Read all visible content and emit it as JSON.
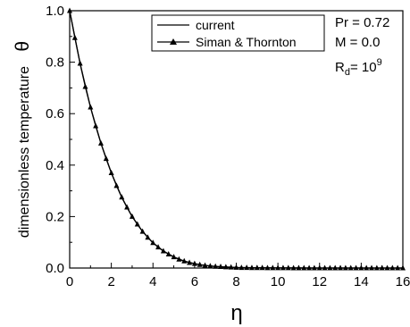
{
  "chart_data": {
    "type": "line",
    "xlabel": "η",
    "ylabel": "dimensionless temperature",
    "ylabel_symbol": "θ",
    "xlim": [
      0,
      16
    ],
    "ylim": [
      0,
      1.0
    ],
    "x_ticks": [
      "0",
      "2",
      "4",
      "6",
      "8",
      "10",
      "12",
      "14",
      "16"
    ],
    "y_ticks": [
      "0.0",
      "0.2",
      "0.4",
      "0.6",
      "0.8",
      "1.0"
    ],
    "grid": false,
    "legend_position": "top-center",
    "annotations": {
      "pr": "Pr = 0.72",
      "m": "M = 0.0",
      "rd_base": "R",
      "rd_sub": "d",
      "rd_eq": "= 10",
      "rd_sup": "9"
    },
    "series": [
      {
        "name": "current",
        "style": "solid-line",
        "color": "#000000",
        "x": [
          0,
          0.5,
          1.0,
          1.5,
          2.0,
          2.5,
          3.0,
          3.5,
          4.0,
          4.5,
          5.0,
          5.5,
          6.0,
          6.5,
          7.0,
          7.5,
          8.0,
          9.0,
          10.0,
          11.0,
          12.0,
          13.0,
          14.0,
          15.0,
          16.0
        ],
        "y": [
          1.0,
          0.795,
          0.625,
          0.485,
          0.37,
          0.275,
          0.2,
          0.142,
          0.098,
          0.066,
          0.043,
          0.027,
          0.017,
          0.01,
          0.006,
          0.004,
          0.002,
          0.001,
          0.0005,
          0.0002,
          0.0001,
          0.0,
          0.0,
          0.0,
          0.0
        ]
      },
      {
        "name": "Siman & Thornton",
        "style": "line-triangle-markers",
        "color": "#000000",
        "x": [
          0,
          0.25,
          0.5,
          0.75,
          1.0,
          1.25,
          1.5,
          1.75,
          2.0,
          2.25,
          2.5,
          2.75,
          3.0,
          3.25,
          3.5,
          3.75,
          4.0,
          4.25,
          4.5,
          4.75,
          5.0,
          5.25,
          5.5,
          5.75,
          6.0,
          6.25,
          6.5,
          6.75,
          7.0,
          7.25,
          7.5,
          7.75,
          8.0,
          8.25,
          8.5,
          8.75,
          9.0,
          9.25,
          9.5,
          9.75,
          10.0,
          10.25,
          10.5,
          10.75,
          11.0,
          11.25,
          11.5,
          11.75,
          12.0,
          12.25,
          12.5,
          12.75,
          13.0,
          13.25,
          13.5,
          13.75,
          14.0,
          14.25,
          14.5,
          14.75,
          15.0,
          15.25,
          15.5,
          15.75,
          16.0
        ],
        "y": [
          1.0,
          0.895,
          0.795,
          0.705,
          0.625,
          0.552,
          0.485,
          0.425,
          0.37,
          0.32,
          0.275,
          0.236,
          0.2,
          0.17,
          0.142,
          0.119,
          0.098,
          0.081,
          0.066,
          0.054,
          0.043,
          0.034,
          0.027,
          0.021,
          0.017,
          0.013,
          0.01,
          0.008,
          0.006,
          0.005,
          0.004,
          0.003,
          0.002,
          0.0015,
          0.0012,
          0.001,
          0.001,
          0.0008,
          0.0006,
          0.0005,
          0.0005,
          0.0004,
          0.0003,
          0.0002,
          0.0002,
          0.0001,
          0.0001,
          0.0001,
          0.0001,
          0.0,
          0.0,
          0.0,
          0.0,
          0.0,
          0.0,
          0.0,
          0.0,
          0.0,
          0.0,
          0.0,
          0.0,
          0.0,
          0.0,
          0.0,
          0.0
        ]
      }
    ]
  }
}
